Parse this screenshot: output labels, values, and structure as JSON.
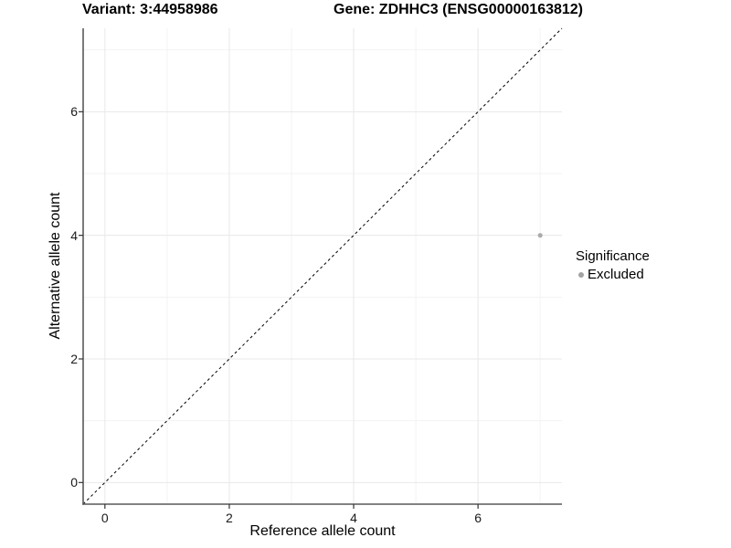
{
  "titles": {
    "variant": "Variant: 3:44958986",
    "gene": "Gene: ZDHHC3 (ENSG00000163812)"
  },
  "axes": {
    "x_label": "Reference allele count",
    "y_label": "Alternative allele count"
  },
  "legend": {
    "title": "Significance",
    "items": [
      {
        "label": "Excluded",
        "color": "#a3a3a3"
      }
    ]
  },
  "colors": {
    "background": "#ffffff",
    "grid_major": "#e8e8e8",
    "grid_minor": "#f3f3f3",
    "axis_line": "#595959",
    "tick_mark": "#333333",
    "point": "#ababab",
    "reference_line": "#000000"
  },
  "chart_data": {
    "type": "scatter",
    "title": "Variant: 3:44958986 | Gene: ZDHHC3 (ENSG00000163812)",
    "xlabel": "Reference allele count",
    "ylabel": "Alternative allele count",
    "xlim": [
      -0.35,
      7.35
    ],
    "ylim": [
      -0.35,
      7.35
    ],
    "x_ticks": [
      0,
      2,
      4,
      6
    ],
    "y_ticks": [
      0,
      2,
      4,
      6
    ],
    "x_minor_ticks": [
      1,
      3,
      5,
      7
    ],
    "y_minor_ticks": [
      1,
      3,
      5,
      7
    ],
    "grid": true,
    "legend_position": "right",
    "series": [
      {
        "name": "Excluded",
        "color": "#ababab",
        "points": [
          {
            "x": 7,
            "y": 4
          }
        ]
      }
    ],
    "reference_line": {
      "type": "identity",
      "style": "dashed",
      "color": "#000000"
    }
  }
}
